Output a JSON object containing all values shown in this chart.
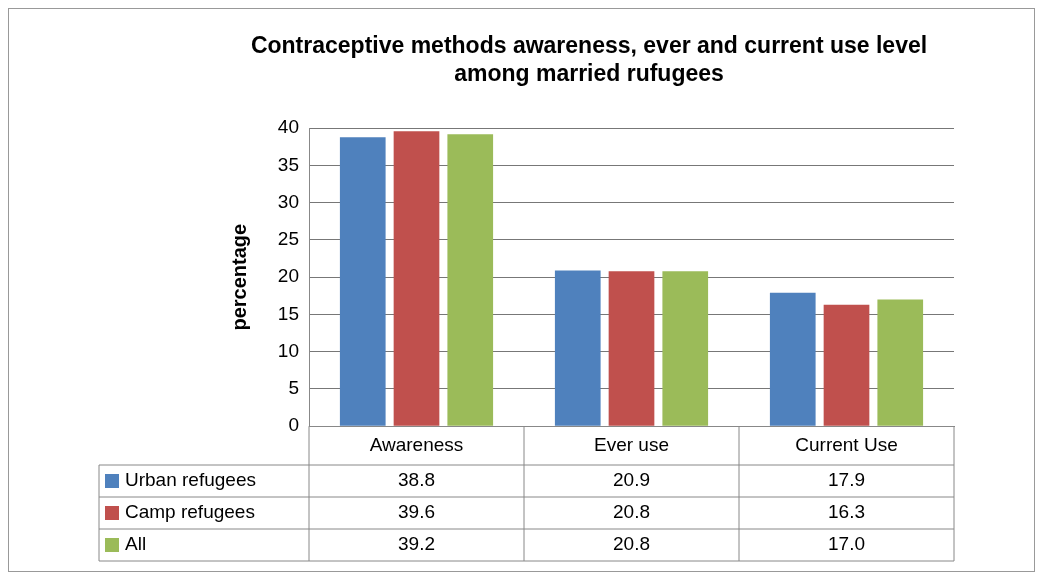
{
  "chart_data": {
    "type": "bar",
    "title": "Contraceptive methods awareness, ever and current use level among married rufugees",
    "ylabel": "percentage",
    "categories": [
      "Awareness",
      "Ever use",
      "Current Use"
    ],
    "series": [
      {
        "name": "Urban refugees",
        "color": "#4f81bd",
        "values": [
          38.8,
          20.9,
          17.9
        ],
        "value_labels": [
          "38.8",
          "20.9",
          "17.9"
        ]
      },
      {
        "name": "Camp refugees",
        "color": "#c0504d",
        "values": [
          39.6,
          20.8,
          16.3
        ],
        "value_labels": [
          "39.6",
          "20.8",
          "16.3"
        ]
      },
      {
        "name": "All",
        "color": "#9bbb59",
        "values": [
          39.2,
          20.8,
          17.0
        ],
        "value_labels": [
          "39.2",
          "20.8",
          "17.0"
        ]
      }
    ],
    "ylim": [
      0,
      40
    ],
    "yticks": [
      0,
      5,
      10,
      15,
      20,
      25,
      30,
      35,
      40
    ],
    "grid": "y",
    "legend": "bottom"
  }
}
